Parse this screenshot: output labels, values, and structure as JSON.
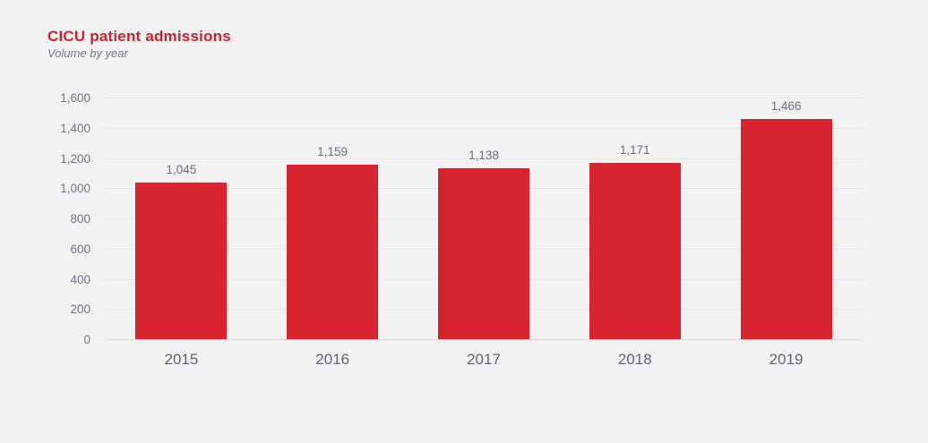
{
  "header": {
    "title": "CICU patient admissions",
    "subtitle": "Volume by year"
  },
  "colors": {
    "background": "#f2f2f3",
    "title_red": "#d0212e",
    "bar_red": "#d8242e",
    "axis_text": "#73737d",
    "value_label_text": "#6d6d77",
    "year_label_text": "#63636c",
    "gridline": "#e9e9ec",
    "baseline": "#d9d9dd"
  },
  "chart_data": {
    "type": "bar",
    "title": "CICU patient admissions",
    "subtitle": "Volume by year",
    "categories": [
      "2015",
      "2016",
      "2017",
      "2018",
      "2019"
    ],
    "values": [
      1045,
      1159,
      1138,
      1171,
      1466
    ],
    "value_labels": [
      "1,045",
      "1,159",
      "1,138",
      "1,171",
      "1,466"
    ],
    "xlabel": "",
    "ylabel": "",
    "ylim": [
      0,
      1600
    ],
    "ytick_step": 200,
    "ytick_labels": [
      "0",
      "200",
      "400",
      "600",
      "800",
      "1,000",
      "1,200",
      "1,400",
      "1,600"
    ],
    "grid": true,
    "legend_position": "none",
    "bar_color": "#d8242e"
  }
}
